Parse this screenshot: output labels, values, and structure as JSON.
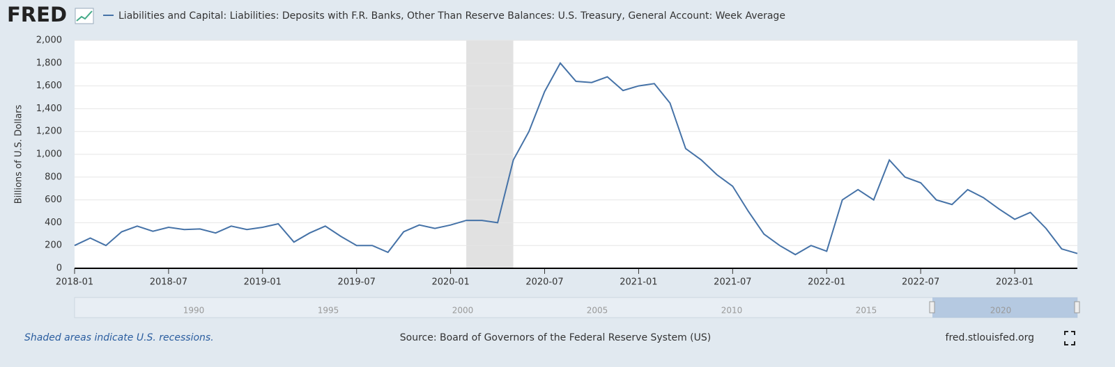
{
  "brand": "FRED",
  "chart_data": {
    "type": "line",
    "title": "Liabilities and Capital: Liabilities: Deposits with F.R. Banks, Other Than Reserve Balances: U.S. Treasury, General Account: Week Average",
    "y_label": "Billions of U.S. Dollars",
    "x": [
      "2018-01",
      "2018-02",
      "2018-03",
      "2018-04",
      "2018-05",
      "2018-06",
      "2018-07",
      "2018-08",
      "2018-09",
      "2018-10",
      "2018-11",
      "2018-12",
      "2019-01",
      "2019-02",
      "2019-03",
      "2019-04",
      "2019-05",
      "2019-06",
      "2019-07",
      "2019-08",
      "2019-09",
      "2019-10",
      "2019-11",
      "2019-12",
      "2020-01",
      "2020-02",
      "2020-03",
      "2020-04",
      "2020-05",
      "2020-06",
      "2020-07",
      "2020-08",
      "2020-09",
      "2020-10",
      "2020-11",
      "2020-12",
      "2021-01",
      "2021-02",
      "2021-03",
      "2021-04",
      "2021-05",
      "2021-06",
      "2021-07",
      "2021-08",
      "2021-09",
      "2021-10",
      "2021-11",
      "2021-12",
      "2022-01",
      "2022-02",
      "2022-03",
      "2022-04",
      "2022-05",
      "2022-06",
      "2022-07",
      "2022-08",
      "2022-09",
      "2022-10",
      "2022-11",
      "2022-12",
      "2023-01",
      "2023-02",
      "2023-03",
      "2023-04",
      "2023-05"
    ],
    "series": [
      {
        "name": "Liabilities and Capital: Liabilities: Deposits with F.R. Banks, Other Than Reserve Balances: U.S. Treasury, General Account: Week Average",
        "color": "#4572a7",
        "values": [
          200,
          265,
          200,
          320,
          370,
          325,
          360,
          340,
          345,
          310,
          370,
          340,
          360,
          390,
          230,
          310,
          370,
          280,
          200,
          200,
          140,
          320,
          380,
          350,
          380,
          420,
          420,
          400,
          950,
          1200,
          1550,
          1800,
          1640,
          1630,
          1680,
          1560,
          1600,
          1620,
          1450,
          1050,
          950,
          820,
          720,
          500,
          300,
          200,
          120,
          200,
          150,
          600,
          690,
          600,
          950,
          800,
          750,
          600,
          560,
          690,
          620,
          520,
          430,
          490,
          350,
          170,
          130
        ]
      }
    ],
    "xlim": [
      "2018-01",
      "2023-05"
    ],
    "xticks": [
      "2018-01",
      "2018-07",
      "2019-01",
      "2019-07",
      "2020-01",
      "2020-07",
      "2021-01",
      "2021-07",
      "2022-01",
      "2022-07",
      "2023-01"
    ],
    "ylim": [
      0,
      2000
    ],
    "yticks": [
      0,
      200,
      400,
      600,
      800,
      {
        "value": 1000,
        "label": "1,000"
      },
      {
        "value": 1200,
        "label": "1,200"
      },
      {
        "value": 1400,
        "label": "1,400"
      },
      {
        "value": 1600,
        "label": "1,600"
      },
      {
        "value": 1800,
        "label": "1,800"
      },
      {
        "value": 2000,
        "label": "2,000"
      }
    ],
    "grid": true,
    "recessions": [
      [
        "2020-02",
        "2020-04"
      ]
    ],
    "navigator_ticks": [
      1990,
      1995,
      2000,
      2005,
      2010,
      2015,
      2020
    ]
  },
  "footer": {
    "note": "Shaded areas indicate U.S. recessions.",
    "source": "Source: Board of Governors of the Federal Reserve System (US)",
    "site": "fred.stlouisfed.org"
  }
}
